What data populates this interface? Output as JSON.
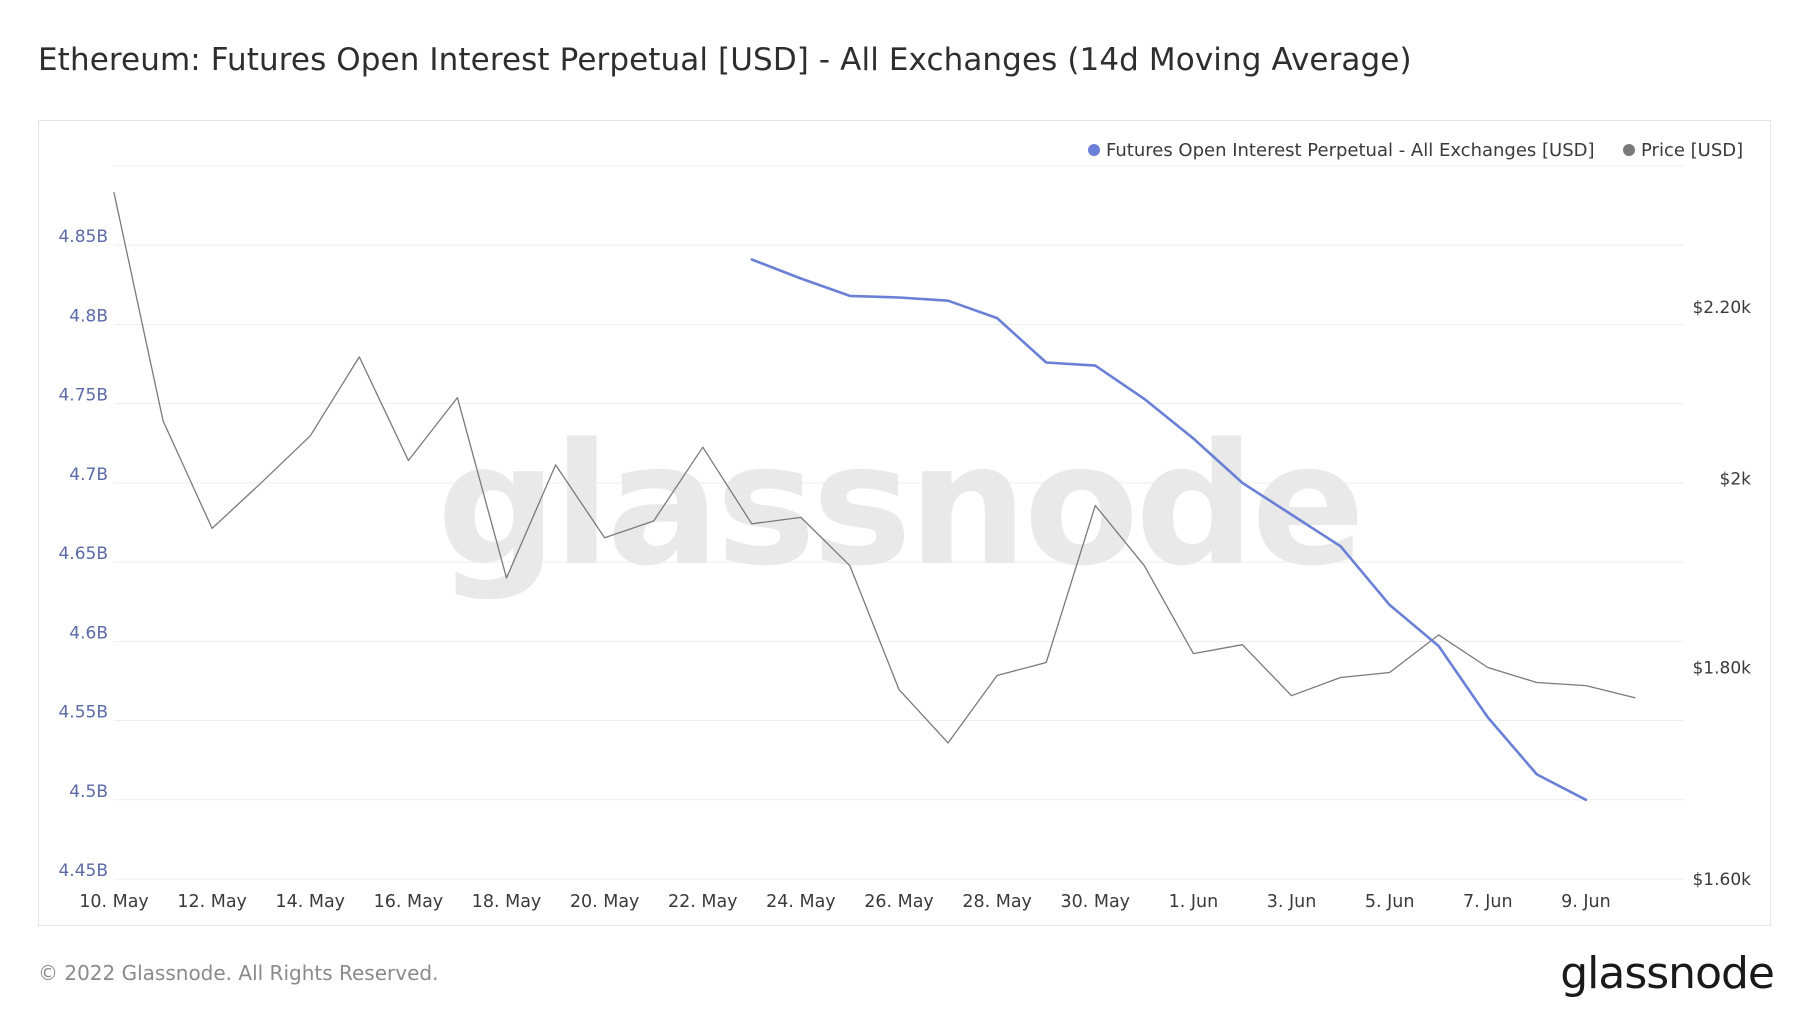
{
  "header": {
    "title": "Ethereum: Futures Open Interest Perpetual [USD] - All Exchanges (14d Moving Average)"
  },
  "watermark": "glassnode",
  "footer": {
    "copyright": "© 2022 Glassnode. All Rights Reserved.",
    "logo": "glassnode"
  },
  "colors": {
    "open_interest": "#6a80d6",
    "price": "#7a7a7a",
    "grid": "#eeeeee"
  },
  "chart_data": {
    "type": "line",
    "title": "Ethereum: Futures Open Interest Perpetual [USD] - All Exchanges (14d Moving Average)",
    "legend_position": "top-right",
    "grid": true,
    "x_ticks": [
      "10. May",
      "12. May",
      "14. May",
      "16. May",
      "18. May",
      "20. May",
      "22. May",
      "24. May",
      "26. May",
      "28. May",
      "30. May",
      "1. Jun",
      "3. Jun",
      "5. Jun",
      "7. Jun",
      "9. Jun"
    ],
    "x_range": [
      "2022-05-10",
      "2022-06-11"
    ],
    "y_left": {
      "unit": "B",
      "range": [
        4.45,
        4.9
      ],
      "ticks": [
        {
          "value": 4.45,
          "label": "4.45B"
        },
        {
          "value": 4.5,
          "label": "4.5B"
        },
        {
          "value": 4.55,
          "label": "4.55B"
        },
        {
          "value": 4.6,
          "label": "4.6B"
        },
        {
          "value": 4.65,
          "label": "4.65B"
        },
        {
          "value": 4.7,
          "label": "4.7B"
        },
        {
          "value": 4.75,
          "label": "4.75B"
        },
        {
          "value": 4.8,
          "label": "4.8B"
        },
        {
          "value": 4.85,
          "label": "4.85B"
        }
      ]
    },
    "y_right": {
      "unit": "USD",
      "scale": "log",
      "range": [
        1600,
        2380
      ],
      "ticks": [
        {
          "value": 1600,
          "label": "$1.60k"
        },
        {
          "value": 1800,
          "label": "$1.80k"
        },
        {
          "value": 2000,
          "label": "$2k"
        },
        {
          "value": 2200,
          "label": "$2.20k"
        }
      ]
    },
    "series": [
      {
        "name": "Futures Open Interest Perpetual - All Exchanges [USD]",
        "axis": "left",
        "x": [
          "2022-05-23",
          "2022-05-24",
          "2022-05-25",
          "2022-05-26",
          "2022-05-27",
          "2022-05-28",
          "2022-05-29",
          "2022-05-30",
          "2022-05-31",
          "2022-06-01",
          "2022-06-02",
          "2022-06-03",
          "2022-06-04",
          "2022-06-05",
          "2022-06-06",
          "2022-06-07",
          "2022-06-08",
          "2022-06-09"
        ],
        "values": [
          4.841,
          4.829,
          4.818,
          4.817,
          4.815,
          4.804,
          4.776,
          4.774,
          4.753,
          4.728,
          4.7,
          4.68,
          4.66,
          4.623,
          4.597,
          4.552,
          4.516,
          4.5
        ]
      },
      {
        "name": "Price [USD]",
        "axis": "right",
        "x": [
          "2022-05-10",
          "2022-05-11",
          "2022-05-12",
          "2022-05-13",
          "2022-05-14",
          "2022-05-15",
          "2022-05-16",
          "2022-05-17",
          "2022-05-18",
          "2022-05-19",
          "2022-05-20",
          "2022-05-21",
          "2022-05-22",
          "2022-05-23",
          "2022-05-24",
          "2022-05-25",
          "2022-05-26",
          "2022-05-27",
          "2022-05-28",
          "2022-05-29",
          "2022-05-30",
          "2022-05-31",
          "2022-06-01",
          "2022-06-02",
          "2022-06-03",
          "2022-06-04",
          "2022-06-05",
          "2022-06-06",
          "2022-06-07",
          "2022-06-08",
          "2022-06-09",
          "2022-06-10"
        ],
        "values": [
          2345,
          2065,
          1945,
          1995,
          2048,
          2140,
          2020,
          2092,
          1892,
          2015,
          1935,
          1953,
          2035,
          1950,
          1957,
          1905,
          1778,
          1726,
          1792,
          1805,
          1970,
          1905,
          1814,
          1823,
          1772,
          1790,
          1795,
          1833,
          1800,
          1785,
          1782,
          1770
        ]
      }
    ]
  }
}
